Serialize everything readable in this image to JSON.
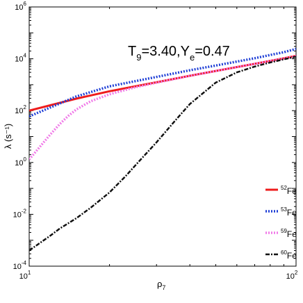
{
  "chart_data": {
    "type": "line",
    "title": "",
    "annotation": {
      "T_base": "T",
      "T_sub": "9",
      "mid": "=3.40,Y",
      "Y_sub": "e",
      "end": "=0.47"
    },
    "xlabel": {
      "base": "ρ",
      "sub": "7"
    },
    "ylabel": "λ (s⁻¹)",
    "xscale": "log",
    "yscale": "log",
    "xlim": [
      10,
      100
    ],
    "ylim": [
      0.0001,
      1000000
    ],
    "x_ticks": [
      {
        "value": 10,
        "base": "10",
        "exp": "1"
      },
      {
        "value": 100,
        "base": "10",
        "exp": "2"
      }
    ],
    "y_ticks": [
      {
        "value": 0.0001,
        "base": "10",
        "exp": "-4"
      },
      {
        "value": 0.01,
        "base": "10",
        "exp": "-2"
      },
      {
        "value": 1,
        "base": "10",
        "exp": "0"
      },
      {
        "value": 100,
        "base": "10",
        "exp": "2"
      },
      {
        "value": 10000,
        "base": "10",
        "exp": "4"
      },
      {
        "value": 1000000,
        "base": "10",
        "exp": "6"
      }
    ],
    "legend_position": "bottom-right",
    "series": [
      {
        "name": "Fe",
        "mass_number": "52",
        "color": "#ee1c1c",
        "style": "solid",
        "x": [
          10,
          15,
          20,
          30,
          40,
          50,
          60,
          70,
          80,
          90,
          100
        ],
        "y": [
          100,
          290,
          560,
          1240,
          2220,
          3400,
          4800,
          6400,
          8300,
          10500,
          13000
        ]
      },
      {
        "name": "Fe",
        "mass_number": "53",
        "color": "#1f3fd6",
        "style": "dotted",
        "x": [
          10,
          15,
          20,
          30,
          40,
          50,
          60,
          70,
          80,
          90,
          100
        ],
        "y": [
          60,
          350,
          870,
          2000,
          3600,
          5500,
          7800,
          10500,
          14000,
          18000,
          24000
        ]
      },
      {
        "name": "Fe",
        "mass_number": "59",
        "color": "#f07ae8",
        "style": "dotted",
        "x": [
          10,
          11,
          12,
          13,
          14,
          15,
          17,
          20,
          25,
          30,
          40,
          50,
          60,
          70,
          80,
          90,
          100
        ],
        "y": [
          1.3,
          4.2,
          12,
          30,
          62,
          110,
          230,
          430,
          800,
          1200,
          2200,
          3400,
          4800,
          6400,
          8200,
          10200,
          12500
        ]
      },
      {
        "name": "Fe",
        "mass_number": "60",
        "color": "#111111",
        "style": "dashdot",
        "x": [
          10,
          11,
          12,
          13,
          15,
          17,
          20,
          23,
          26,
          30,
          35,
          40,
          50,
          60,
          70,
          80,
          90,
          100
        ],
        "y": [
          0.0004,
          0.0008,
          0.0015,
          0.0028,
          0.007,
          0.018,
          0.07,
          0.3,
          1.2,
          6,
          38,
          180,
          1200,
          3000,
          5000,
          7200,
          9500,
          12000
        ]
      }
    ]
  }
}
